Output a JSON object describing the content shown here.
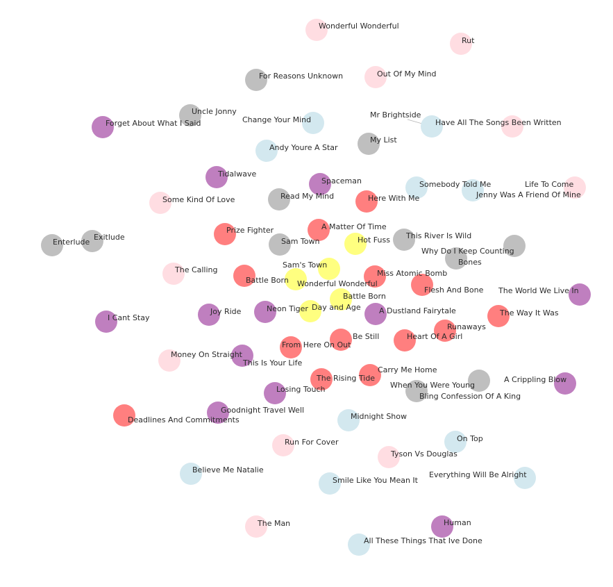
{
  "colors": {
    "red": "#ff7f7f",
    "yellow": "#ffff80",
    "purple": "#bf7fbf",
    "gray": "#bfbfbf",
    "lightblue": "#d3e8ef",
    "pink": "#ffdde2",
    "label": "#2b2b2b",
    "edge": "#b5b5b5"
  },
  "nodes": [
    {
      "id": "wonderful-wonderful-top",
      "label": "Wonderful Wonderful",
      "color": "pink"
    },
    {
      "id": "rut",
      "label": "Rut",
      "color": "pink"
    },
    {
      "id": "for-reasons-unknown",
      "label": "For Reasons Unknown",
      "color": "gray"
    },
    {
      "id": "out-of-my-mind",
      "label": "Out Of My Mind",
      "color": "pink"
    },
    {
      "id": "uncle-jonny",
      "label": "Uncle Jonny",
      "color": "gray"
    },
    {
      "id": "forget-about-what-i-said",
      "label": "Forget About What I Said",
      "color": "purple"
    },
    {
      "id": "change-your-mind",
      "label": "Change Your Mind",
      "color": "lightblue"
    },
    {
      "id": "mr-brightside",
      "label": "Mr Brightside",
      "color": "lightblue"
    },
    {
      "id": "have-all-the-songs",
      "label": "Have All The Songs Been Written",
      "color": "pink"
    },
    {
      "id": "my-list",
      "label": "My List",
      "color": "gray"
    },
    {
      "id": "andy-youre-a-star",
      "label": "Andy Youre A Star",
      "color": "lightblue"
    },
    {
      "id": "tidalwave",
      "label": "Tidalwave",
      "color": "purple"
    },
    {
      "id": "spaceman",
      "label": "Spaceman",
      "color": "purple"
    },
    {
      "id": "somebody-told-me",
      "label": "Somebody Told Me",
      "color": "lightblue"
    },
    {
      "id": "life-to-come",
      "label": "Life To Come",
      "color": "pink"
    },
    {
      "id": "jenny-was-a-friend",
      "label": "Jenny Was A Friend Of Mine",
      "color": "lightblue"
    },
    {
      "id": "some-kind-of-love",
      "label": "Some Kind Of Love",
      "color": "pink"
    },
    {
      "id": "read-my-mind",
      "label": "Read My Mind",
      "color": "gray"
    },
    {
      "id": "here-with-me",
      "label": "Here With Me",
      "color": "red"
    },
    {
      "id": "prize-fighter",
      "label": "Prize Fighter",
      "color": "red"
    },
    {
      "id": "a-matter-of-time",
      "label": "A Matter Of Time",
      "color": "red"
    },
    {
      "id": "this-river-is-wild",
      "label": "This River Is Wild",
      "color": "gray"
    },
    {
      "id": "enterlude",
      "label": "Enterlude",
      "color": "gray"
    },
    {
      "id": "exitlude",
      "label": "Exitlude",
      "color": "gray"
    },
    {
      "id": "sam-town",
      "label": "Sam Town",
      "color": "gray"
    },
    {
      "id": "hot-fuss",
      "label": "Hot Fuss",
      "color": "yellow"
    },
    {
      "id": "why-do-i-keep-counting",
      "label": "Why Do I Keep Counting",
      "color": "gray"
    },
    {
      "id": "bones",
      "label": "Bones",
      "color": "gray"
    },
    {
      "id": "the-calling",
      "label": "The Calling",
      "color": "pink"
    },
    {
      "id": "sams-town",
      "label": "Sam's Town",
      "color": "yellow"
    },
    {
      "id": "miss-atomic-bomb",
      "label": "Miss Atomic Bomb",
      "color": "red"
    },
    {
      "id": "battle-born-red",
      "label": "Battle Born",
      "color": "red"
    },
    {
      "id": "wonderful-wonderful-album",
      "label": "Wonderful Wonderful",
      "color": "yellow"
    },
    {
      "id": "flesh-and-bone",
      "label": "Flesh And Bone",
      "color": "red"
    },
    {
      "id": "the-world-we-live-in",
      "label": "The World We Live In",
      "color": "purple"
    },
    {
      "id": "battle-born-album",
      "label": "Battle Born",
      "color": "yellow"
    },
    {
      "id": "neon-tiger",
      "label": "Neon Tiger",
      "color": "purple"
    },
    {
      "id": "day-and-age",
      "label": "Day and Age",
      "color": "yellow"
    },
    {
      "id": "a-dustland-fairytale",
      "label": "A Dustland Fairytale",
      "color": "purple"
    },
    {
      "id": "i-cant-stay",
      "label": "I Cant Stay",
      "color": "purple"
    },
    {
      "id": "joy-ride",
      "label": "Joy Ride",
      "color": "purple"
    },
    {
      "id": "the-way-it-was",
      "label": "The Way It Was",
      "color": "red"
    },
    {
      "id": "runaways",
      "label": "Runaways",
      "color": "red"
    },
    {
      "id": "be-still",
      "label": "Be Still",
      "color": "red"
    },
    {
      "id": "heart-of-a-girl",
      "label": "Heart Of A Girl",
      "color": "red"
    },
    {
      "id": "from-here-on-out",
      "label": "From Here On Out",
      "color": "red"
    },
    {
      "id": "money-on-straight",
      "label": "Money On Straight",
      "color": "pink"
    },
    {
      "id": "this-is-your-life",
      "label": "This Is Your Life",
      "color": "purple"
    },
    {
      "id": "carry-me-home",
      "label": "Carry Me Home",
      "color": "red"
    },
    {
      "id": "the-rising-tide",
      "label": "The Rising Tide",
      "color": "red"
    },
    {
      "id": "when-you-were-young",
      "label": "When You Were Young",
      "color": "gray"
    },
    {
      "id": "a-crippling-blow",
      "label": "A Crippling Blow",
      "color": "purple"
    },
    {
      "id": "bling-confession",
      "label": "Bling Confession Of A King",
      "color": "gray"
    },
    {
      "id": "losing-touch",
      "label": "Losing Touch",
      "color": "purple"
    },
    {
      "id": "goodnight-travel-well",
      "label": "Goodnight Travel Well",
      "color": "purple"
    },
    {
      "id": "deadlines-and-commitments",
      "label": "Deadlines And Commitments",
      "color": "red"
    },
    {
      "id": "midnight-show",
      "label": "Midnight Show",
      "color": "lightblue"
    },
    {
      "id": "run-for-cover",
      "label": "Run For Cover",
      "color": "pink"
    },
    {
      "id": "on-top",
      "label": "On Top",
      "color": "lightblue"
    },
    {
      "id": "tyson-vs-douglas",
      "label": "Tyson Vs Douglas",
      "color": "pink"
    },
    {
      "id": "believe-me-natalie",
      "label": "Believe Me Natalie",
      "color": "lightblue"
    },
    {
      "id": "everything-will-be-alright",
      "label": "Everything Will Be Alright",
      "color": "lightblue"
    },
    {
      "id": "smile-like-you-mean-it",
      "label": "Smile Like You Mean It",
      "color": "lightblue"
    },
    {
      "id": "the-man",
      "label": "The Man",
      "color": "pink"
    },
    {
      "id": "human",
      "label": "Human",
      "color": "purple"
    },
    {
      "id": "all-these-things",
      "label": "All These Things That Ive Done",
      "color": "lightblue"
    }
  ]
}
